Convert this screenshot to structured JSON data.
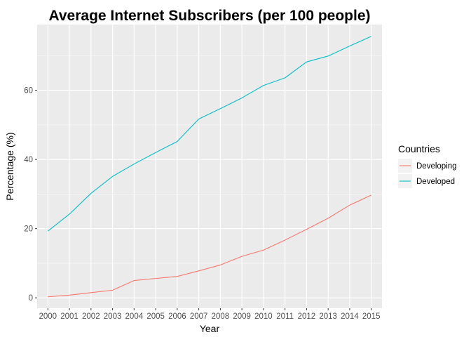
{
  "chart_data": {
    "type": "line",
    "title": "Average Internet Subscribers (per 100 people)",
    "xlabel": "Year",
    "ylabel": "Percentage (%)",
    "x": [
      2000,
      2001,
      2002,
      2003,
      2004,
      2005,
      2006,
      2007,
      2008,
      2009,
      2010,
      2011,
      2012,
      2013,
      2014,
      2015
    ],
    "xlim": [
      2000,
      2015
    ],
    "ylim": [
      -3,
      79
    ],
    "yticks": [
      0,
      20,
      40,
      60
    ],
    "grid": true,
    "legend": {
      "title": "Countries",
      "position": "right"
    },
    "series": [
      {
        "name": "Developing",
        "color": "#F8766D",
        "values": [
          0.3,
          0.8,
          1.5,
          2.2,
          5.0,
          5.6,
          6.2,
          7.8,
          9.5,
          12.0,
          13.8,
          16.7,
          19.8,
          23.0,
          26.8,
          29.7
        ]
      },
      {
        "name": "Developed",
        "color": "#00BFC4",
        "values": [
          19.3,
          24.2,
          30.2,
          35.1,
          38.7,
          42.0,
          45.2,
          51.7,
          54.7,
          57.8,
          61.4,
          63.6,
          68.2,
          69.9,
          72.8,
          75.6
        ]
      }
    ]
  },
  "colors": {
    "panel_background": "#EBEBEB",
    "grid_major": "#FFFFFF",
    "tick_text": "#4D4D4D"
  }
}
